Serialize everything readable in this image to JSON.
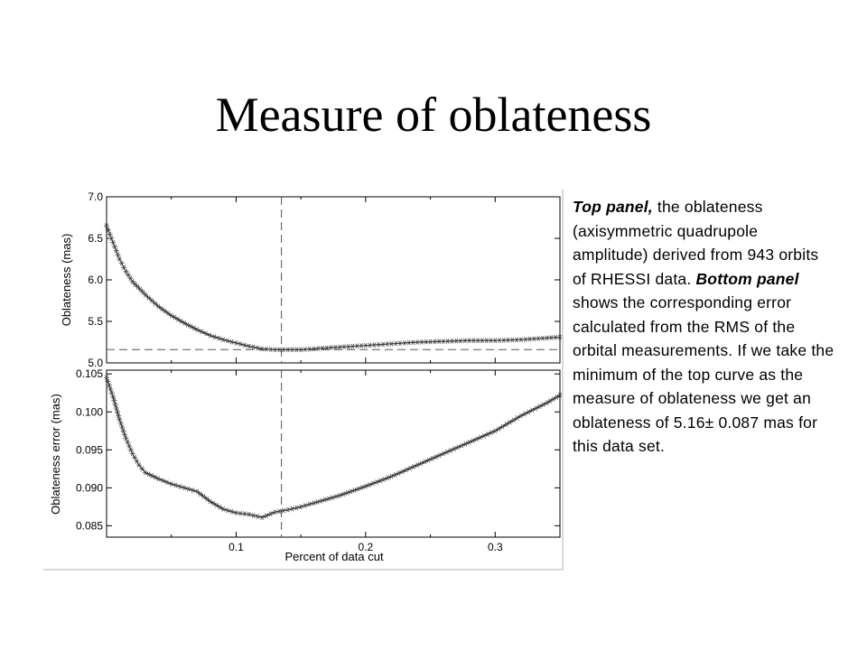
{
  "slide": {
    "title": "Measure of oblateness"
  },
  "caption": {
    "part1": "Top panel,",
    "part2": " the oblateness (axisymmetric quadrupole amplitude) derived from 943 orbits of RHESSI data. ",
    "part3": "Bottom panel",
    "part4": " shows the corresponding error calculated from the RMS of the orbital measurements. If we take the minimum of the top curve as the measure of oblateness we get an oblateness of 5.16± 0.087 mas for this data set."
  },
  "chart_data": [
    {
      "type": "line",
      "panel": "top",
      "title": "",
      "xlabel": "",
      "ylabel": "Oblateness (mas)",
      "xlim": [
        0.0,
        0.35
      ],
      "ylim": [
        5.0,
        7.0
      ],
      "yticks": [
        "5.0",
        "5.5",
        "6.0",
        "6.5",
        "7.0"
      ],
      "reference_lines": {
        "vertical_x": 0.135,
        "horizontal_y": 5.16
      },
      "series": [
        {
          "marker": "asterisk",
          "x": [
            0.0,
            0.005,
            0.01,
            0.015,
            0.02,
            0.03,
            0.04,
            0.05,
            0.06,
            0.07,
            0.08,
            0.09,
            0.1,
            0.11,
            0.12,
            0.13,
            0.14,
            0.15,
            0.16,
            0.18,
            0.2,
            0.22,
            0.24,
            0.26,
            0.28,
            0.3,
            0.32,
            0.34,
            0.35
          ],
          "y": [
            6.65,
            6.45,
            6.25,
            6.1,
            5.98,
            5.82,
            5.68,
            5.57,
            5.48,
            5.4,
            5.33,
            5.28,
            5.24,
            5.2,
            5.17,
            5.16,
            5.16,
            5.16,
            5.17,
            5.19,
            5.21,
            5.23,
            5.25,
            5.26,
            5.27,
            5.27,
            5.28,
            5.3,
            5.31
          ]
        }
      ]
    },
    {
      "type": "line",
      "panel": "bottom",
      "title": "",
      "xlabel": "Percent of data cut",
      "ylabel": "Oblateness error (mas)",
      "xlim": [
        0.0,
        0.35
      ],
      "ylim": [
        0.0835,
        0.1055
      ],
      "xticks": [
        "0.1",
        "0.2",
        "0.3"
      ],
      "yticks": [
        "0.085",
        "0.090",
        "0.095",
        "0.100",
        "0.105"
      ],
      "reference_lines": {
        "vertical_x": 0.135
      },
      "series": [
        {
          "marker": "asterisk",
          "x": [
            0.0,
            0.005,
            0.01,
            0.015,
            0.02,
            0.025,
            0.03,
            0.04,
            0.05,
            0.06,
            0.07,
            0.08,
            0.09,
            0.1,
            0.11,
            0.12,
            0.13,
            0.14,
            0.15,
            0.16,
            0.18,
            0.2,
            0.22,
            0.24,
            0.26,
            0.28,
            0.3,
            0.32,
            0.34,
            0.35
          ],
          "y": [
            0.1045,
            0.102,
            0.099,
            0.0965,
            0.0945,
            0.093,
            0.092,
            0.0912,
            0.0905,
            0.09,
            0.0895,
            0.0882,
            0.0872,
            0.0867,
            0.0865,
            0.0861,
            0.0868,
            0.0871,
            0.0875,
            0.088,
            0.089,
            0.0902,
            0.0915,
            0.093,
            0.0945,
            0.096,
            0.0975,
            0.0995,
            0.1012,
            0.1022
          ]
        }
      ]
    }
  ]
}
